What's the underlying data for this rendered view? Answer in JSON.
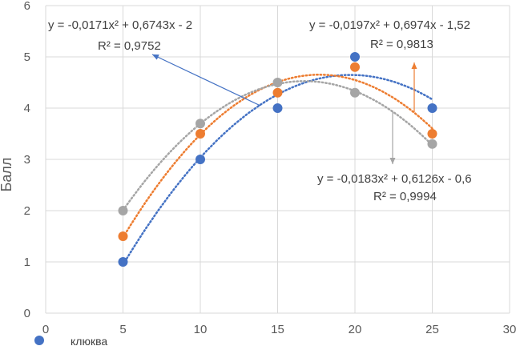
{
  "chart_data": {
    "type": "scatter",
    "title": "",
    "xlabel": "",
    "ylabel": "Балл",
    "xlim": [
      0,
      30
    ],
    "ylim": [
      0,
      6
    ],
    "xticks": [
      0,
      5,
      10,
      15,
      20,
      25,
      30
    ],
    "yticks": [
      0,
      1,
      2,
      3,
      4,
      5,
      6
    ],
    "grid": true,
    "series": [
      {
        "name": "клюква",
        "color": "#4472C4",
        "x": [
          5,
          10,
          15,
          20,
          25
        ],
        "y": [
          1,
          3,
          4,
          5,
          4
        ],
        "trend": {
          "a": -0.0171,
          "b": 0.6743,
          "c": -2
        },
        "equation": "y = -0,0171x² + 0,6743x - 2",
        "r2": "R² = 0,9752"
      },
      {
        "name": "",
        "color": "#ED7D31",
        "x": [
          5,
          10,
          15,
          20,
          25
        ],
        "y": [
          1.5,
          3.5,
          4.3,
          4.8,
          3.5
        ],
        "trend": {
          "a": -0.0197,
          "b": 0.6974,
          "c": -1.52
        },
        "equation": "y = -0,0197x² + 0,6974x - 1,52",
        "r2": "R² = 0,9813"
      },
      {
        "name": "",
        "color": "#A5A5A5",
        "x": [
          5,
          10,
          15,
          20,
          25
        ],
        "y": [
          2,
          3.7,
          4.5,
          4.3,
          3.3
        ],
        "trend": {
          "a": -0.0183,
          "b": 0.6126,
          "c": -0.6
        },
        "equation": "y = -0,0183x² + 0,6126x - 0,6",
        "r2": "R² = 0,9994"
      }
    ],
    "legend": {
      "position": "bottom-left",
      "entries": [
        "клюква"
      ]
    }
  }
}
